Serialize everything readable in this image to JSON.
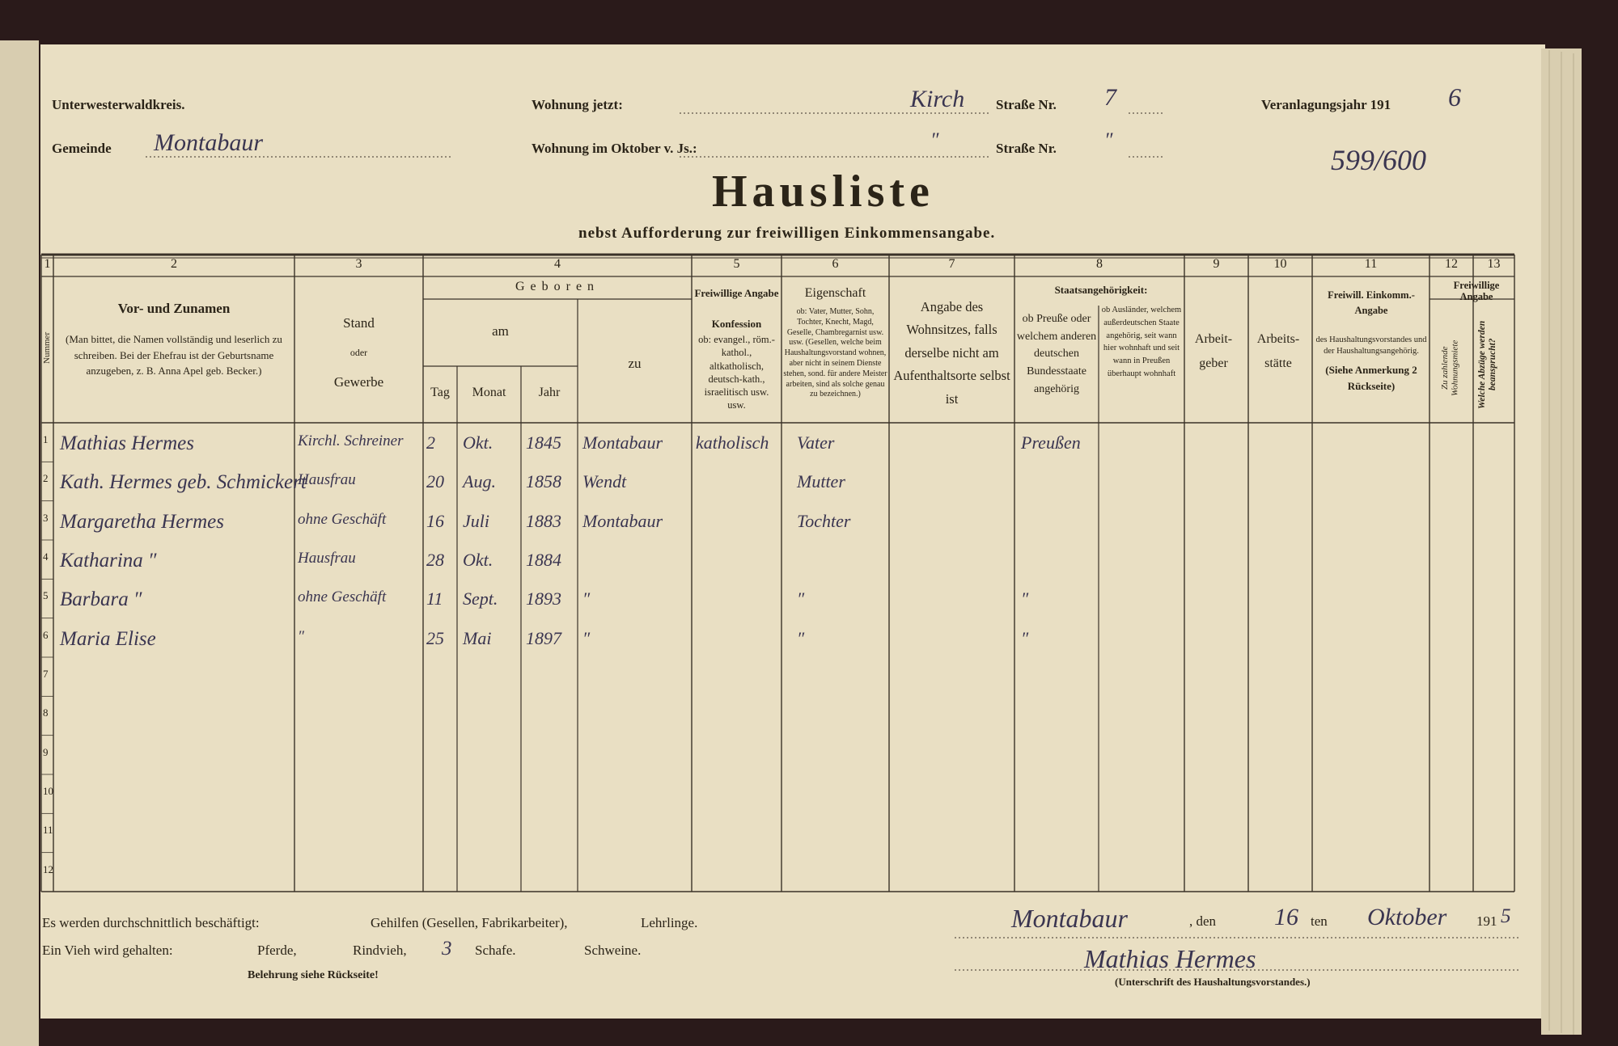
{
  "header": {
    "district": "Unterwesterwaldkreis.",
    "municipality_label": "Gemeinde",
    "municipality": "Montabaur",
    "address_now_label": "Wohnung jetzt:",
    "address_now": "Kirch",
    "street_label": "Straße Nr.",
    "street_no_now": "7",
    "address_oct_label": "Wohnung im Oktober v. Js.:",
    "address_oct": "″",
    "street_label_oct": "Straße Nr.",
    "street_no_oct": "″",
    "year_label": "Veranlagungsjahr 191",
    "year_digit": "6",
    "ref_number": "599/600",
    "title": "Hausliste",
    "subtitle": "nebst Aufforderung zur freiwilligen Einkommensangabe."
  },
  "table": {
    "column_numbers": [
      1,
      2,
      3,
      4,
      5,
      6,
      7,
      8,
      9,
      10,
      11,
      12,
      13
    ],
    "headers": {
      "number": "Nummer",
      "name_title": "Vor- und Zunamen",
      "name_note": "(Man bittet, die Namen vollständig und leserlich zu schreiben. Bei der Ehefrau ist der Geburtsname anzugeben, z. B. Anna Apel geb. Becker.)",
      "status": "Stand",
      "status_or": "oder",
      "status_trade": "Gewerbe",
      "born": "Geboren",
      "born_on": "am",
      "born_at": "zu",
      "day": "Tag",
      "month": "Monat",
      "year": "Jahr",
      "religion_voluntary": "Freiwillige Angabe",
      "religion_title": "Konfession",
      "religion_note": "ob: evangel., röm.-kathol., altkatholisch, deutsch-kath., israelitisch usw. usw.",
      "relation_title": "Eigenschaft",
      "relation_note": "ob: Vater, Mutter, Sohn, Tochter, Knecht, Magd, Geselle, Chambregarnist usw. usw. (Gesellen, welche beim Haushaltungsvorstand wohnen, aber nicht in seinem Dienste stehen, sond. für andere Meister arbeiten, sind als solche genau zu bezeichnen.)",
      "residence": "Angabe des Wohnsitzes, falls derselbe nicht am Aufenthaltsorte selbst ist",
      "nationality_title": "Staatsangehörigkeit:",
      "nationality_german": "ob Preuße oder welchem anderen deutschen Bundesstaate angehörig",
      "nationality_foreign": "ob Ausländer, welchem außerdeutschen Staate angehörig, seit wann hier wohnhaft und seit wann in Preußen überhaupt wohnhaft",
      "employer": "Arbeit- geber",
      "workplace": "Arbeits- stätte",
      "income_title": "Freiwill. Einkomm.-Angabe",
      "income_note": "des Haushaltungsvorstandes und der Haushaltungsangehörig.",
      "income_ref": "(Siehe Anmerkung 2 Rückseite)",
      "rent": "Zu zahlende Wohnungsmiete",
      "deductions_voluntary": "Freiwillige Angabe",
      "deductions": "Welche Abzüge werden beansprucht?"
    },
    "row_numbers": [
      1,
      2,
      3,
      4,
      5,
      6,
      7,
      8,
      9,
      10,
      11,
      12
    ],
    "rows": [
      {
        "name": "Mathias Hermes",
        "occupation": "Kirchl. Schreiner",
        "day": 2,
        "month": "Okt.",
        "year": 1845,
        "birthplace": "Montabaur",
        "religion": "katholisch",
        "relation": "Vater",
        "nationality": "Preußen"
      },
      {
        "name": "Kath. Hermes geb. Schmickert",
        "occupation": "Hausfrau",
        "day": 20,
        "month": "Aug.",
        "year": 1858,
        "birthplace": "Wendt",
        "relation": "Mutter"
      },
      {
        "name": "Margaretha Hermes",
        "occupation": "ohne Geschäft",
        "day": 16,
        "month": "Juli",
        "year": 1883,
        "birthplace": "Montabaur",
        "relation": "Tochter"
      },
      {
        "name": "Katharina ″",
        "occupation": "Hausfrau",
        "day": 28,
        "month": "Okt.",
        "year": 1884
      },
      {
        "name": "Barbara ″",
        "occupation": "ohne Geschäft",
        "day": 11,
        "month": "Sept.",
        "year": 1893,
        "birthplace": "″",
        "relation": "″",
        "nationality": "″"
      },
      {
        "name": "Maria Elise",
        "occupation": "″",
        "day": 25,
        "month": "Mai",
        "year": 1897,
        "birthplace": "″",
        "relation": "″",
        "nationality": "″"
      }
    ]
  },
  "footer": {
    "employed_label": "Es werden durchschnittlich beschäftigt:",
    "journeymen": "Gehilfen (Gesellen, Fabrikarbeiter),",
    "apprentices": "Lehrlinge.",
    "livestock_label": "Ein Vieh wird gehalten:",
    "horses": "Pferde,",
    "cattle": "Rindvieh,",
    "sheep_count": "3",
    "sheep": "Schafe.",
    "pigs": "Schweine.",
    "note": "Belehrung siehe Rückseite!",
    "place": "Montabaur",
    "den": ", den",
    "day": "16",
    "ten": "ten",
    "month": "Oktober",
    "year_prefix": "191",
    "year_digit": "5",
    "signature": "Mathias Hermes",
    "signature_label": "(Unterschrift des Haushaltungsvorstandes.)"
  }
}
